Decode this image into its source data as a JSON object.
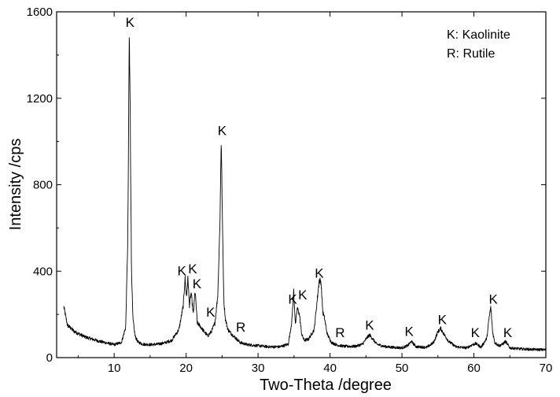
{
  "chart_data": {
    "type": "line",
    "title": "",
    "xlabel": "Two-Theta /degree",
    "ylabel": "Intensity /cps",
    "xlim": [
      2,
      70
    ],
    "ylim": [
      0,
      1600
    ],
    "x_ticks": [
      10,
      20,
      30,
      40,
      50,
      60,
      70
    ],
    "y_ticks": [
      0,
      400,
      800,
      1200,
      1600
    ],
    "grid": false,
    "legend_position": "top-right",
    "legend": [
      {
        "text": "K: Kaolinite"
      },
      {
        "text": "R: Rutile"
      }
    ],
    "series": [
      {
        "x": [
          3.0,
          3.5,
          4.5,
          6,
          8,
          10,
          11,
          11.6,
          11.9,
          12.1,
          12.25,
          12.4,
          12.6,
          12.9,
          13.3,
          14,
          15,
          16,
          17,
          18,
          19,
          19.6,
          19.85,
          20.05,
          20.25,
          20.45,
          20.7,
          21.0,
          21.25,
          21.55,
          21.85,
          22.4,
          23.0,
          23.5,
          24.0,
          24.4,
          24.7,
          24.88,
          25.05,
          25.25,
          25.45,
          25.8,
          26.3,
          26.9,
          27.5,
          28.5,
          30,
          31.5,
          33,
          34.2,
          34.7,
          34.95,
          35.2,
          35.45,
          35.75,
          36.05,
          36.4,
          37.0,
          37.8,
          38.2,
          38.5,
          38.75,
          39.0,
          39.25,
          39.6,
          40.2,
          41.0,
          42.0,
          43.5,
          44.5,
          45.1,
          45.5,
          45.9,
          46.5,
          47.5,
          48.5,
          50,
          50.8,
          51.3,
          52,
          53.5,
          54.4,
          55.0,
          55.4,
          55.8,
          56.5,
          57.5,
          59,
          59.8,
          60.3,
          61,
          61.8,
          62.1,
          62.35,
          62.6,
          62.9,
          63.5,
          64,
          64.4,
          65,
          66.5,
          68,
          70
        ],
        "y": [
          235,
          150,
          120,
          95,
          75,
          60,
          70,
          140,
          560,
          1510,
          1050,
          420,
          180,
          100,
          72,
          62,
          60,
          62,
          68,
          80,
          130,
          240,
          370,
          280,
          370,
          240,
          300,
          200,
          310,
          160,
          150,
          125,
          100,
          120,
          160,
          290,
          620,
          1020,
          620,
          260,
          180,
          130,
          110,
          90,
          70,
          60,
          55,
          50,
          50,
          62,
          170,
          310,
          150,
          230,
          200,
          110,
          80,
          85,
          130,
          260,
          360,
          350,
          210,
          180,
          110,
          70,
          58,
          52,
          52,
          62,
          90,
          105,
          88,
          62,
          52,
          48,
          45,
          55,
          75,
          50,
          48,
          70,
          120,
          135,
          110,
          75,
          50,
          45,
          60,
          65,
          48,
          90,
          180,
          235,
          120,
          70,
          55,
          62,
          75,
          45,
          40,
          38,
          36
        ]
      }
    ],
    "annotations": [
      {
        "text": "K",
        "x": 12.2,
        "y": 1530
      },
      {
        "text": "K",
        "x": 19.4,
        "y": 380
      },
      {
        "text": "K",
        "x": 20.9,
        "y": 390
      },
      {
        "text": "K",
        "x": 21.5,
        "y": 320
      },
      {
        "text": "K",
        "x": 23.4,
        "y": 190
      },
      {
        "text": "K",
        "x": 25.0,
        "y": 1030
      },
      {
        "text": "R",
        "x": 27.6,
        "y": 120
      },
      {
        "text": "K",
        "x": 34.8,
        "y": 250
      },
      {
        "text": "K",
        "x": 36.2,
        "y": 270
      },
      {
        "text": "K",
        "x": 38.5,
        "y": 370
      },
      {
        "text": "R",
        "x": 41.4,
        "y": 95
      },
      {
        "text": "K",
        "x": 45.5,
        "y": 130
      },
      {
        "text": "K",
        "x": 51.0,
        "y": 100
      },
      {
        "text": "K",
        "x": 55.6,
        "y": 155
      },
      {
        "text": "K",
        "x": 60.2,
        "y": 95
      },
      {
        "text": "K",
        "x": 62.7,
        "y": 250
      },
      {
        "text": "K",
        "x": 64.7,
        "y": 95
      }
    ]
  }
}
